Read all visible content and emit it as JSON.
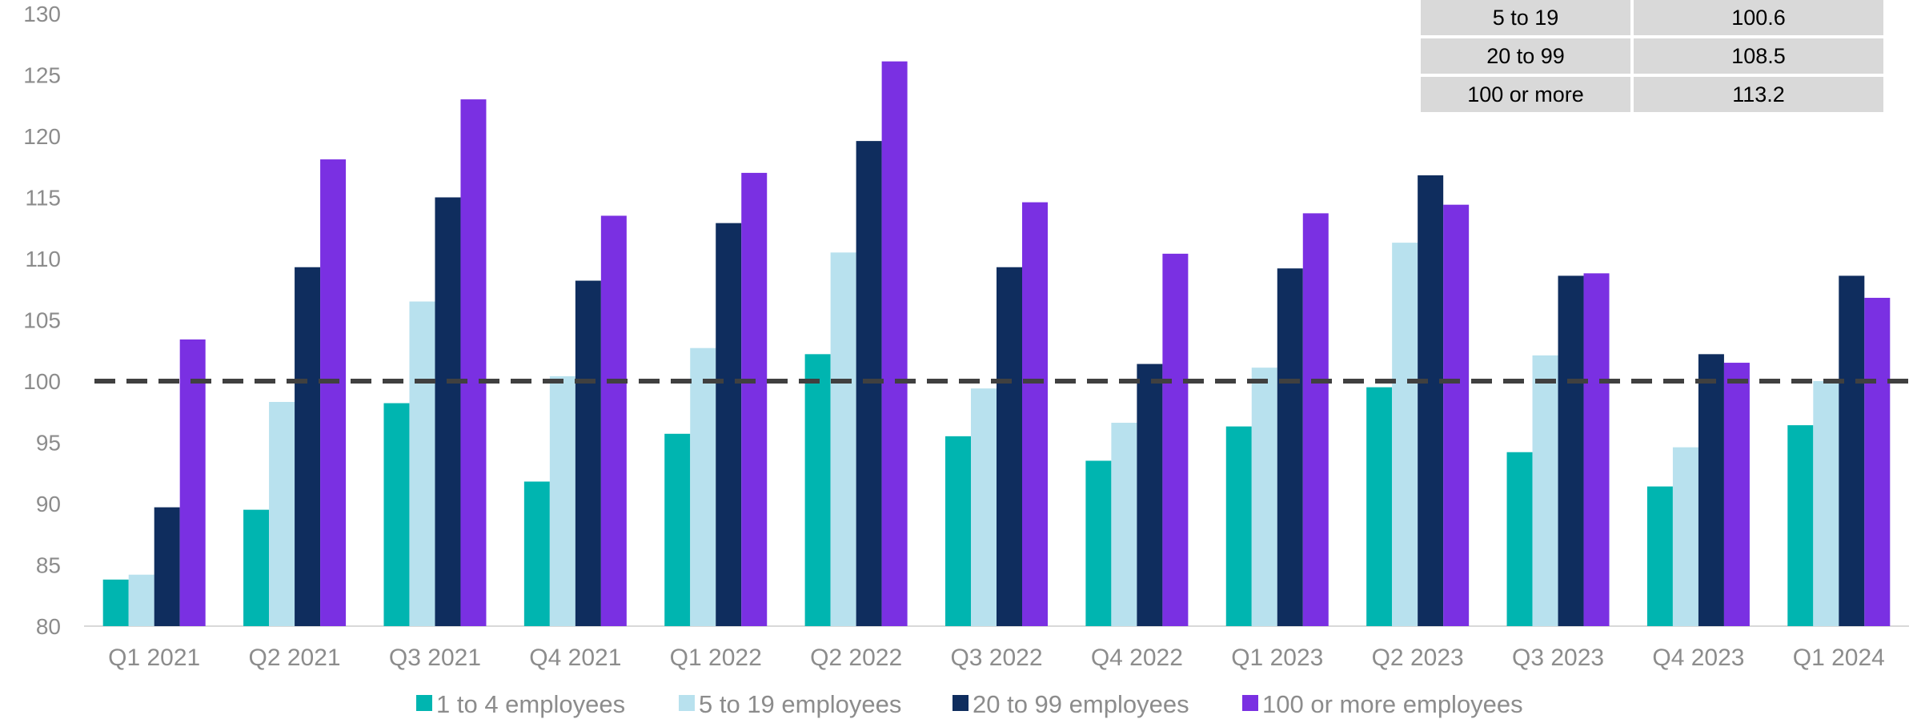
{
  "chart_data": {
    "type": "bar",
    "title": "",
    "xlabel": "",
    "ylabel": "",
    "ylim": [
      80,
      130
    ],
    "yticks": [
      80,
      85,
      90,
      95,
      100,
      105,
      110,
      115,
      120,
      125,
      130
    ],
    "grid": false,
    "legend_position": "bottom",
    "reference_line": {
      "y": 100,
      "style": "dashed",
      "color": "#404040"
    },
    "categories": [
      "Q1 2021",
      "Q2 2021",
      "Q3 2021",
      "Q4 2021",
      "Q1 2022",
      "Q2 2022",
      "Q3 2022",
      "Q4 2022",
      "Q1 2023",
      "Q2 2023",
      "Q3 2023",
      "Q4 2023",
      "Q1 2024"
    ],
    "series": [
      {
        "name": "1 to 4 employees",
        "color": "#00b5b0",
        "values": [
          83.8,
          89.5,
          98.2,
          91.8,
          95.7,
          102.2,
          95.5,
          93.5,
          96.3,
          99.5,
          94.2,
          91.4,
          96.4
        ]
      },
      {
        "name": "5 to 19 employees",
        "color": "#b8e1ee",
        "values": [
          84.2,
          98.3,
          106.5,
          100.4,
          102.7,
          110.5,
          99.4,
          96.6,
          101.1,
          111.3,
          102.1,
          94.6,
          100.0
        ]
      },
      {
        "name": "20 to 99 employees",
        "color": "#0f2d5e",
        "values": [
          89.7,
          109.3,
          115.0,
          108.2,
          112.9,
          119.6,
          109.3,
          101.4,
          109.2,
          116.8,
          108.6,
          102.2,
          108.6
        ]
      },
      {
        "name": "100 or more employees",
        "color": "#7a30e2",
        "values": [
          103.4,
          118.1,
          123.0,
          113.5,
          117.0,
          126.1,
          114.6,
          110.4,
          113.7,
          114.4,
          108.8,
          101.5,
          106.8
        ]
      }
    ],
    "table": {
      "rows": [
        [
          "5 to 19",
          "100.6"
        ],
        [
          "20 to 99",
          "108.5"
        ],
        [
          "100 or more",
          "113.2"
        ]
      ]
    }
  }
}
